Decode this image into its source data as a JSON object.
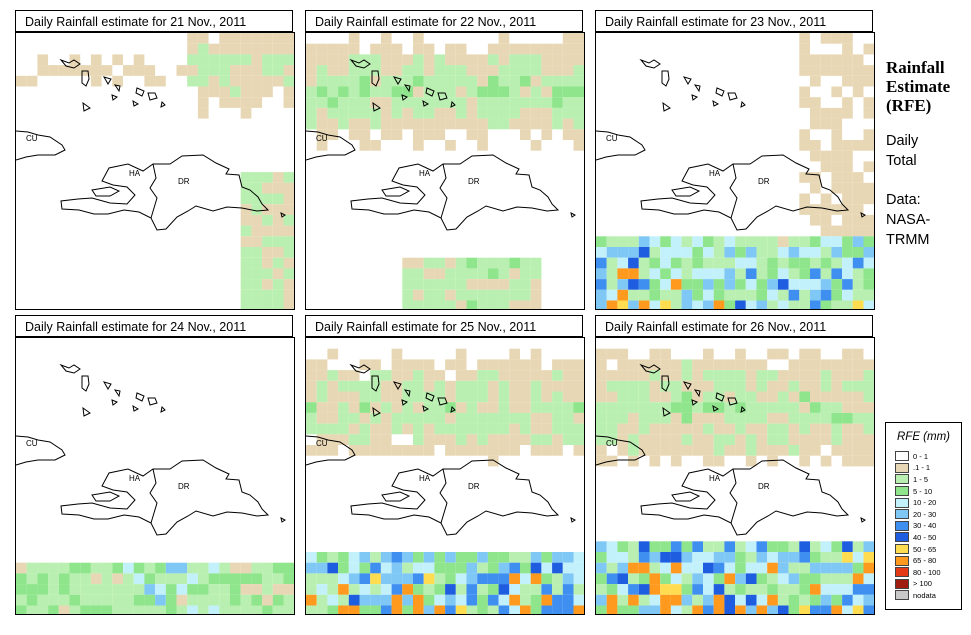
{
  "panels": [
    {
      "title": "Daily Rainfall estimate for  21 Nov., 2011"
    },
    {
      "title": "Daily Rainfall estimate for  22 Nov., 2011"
    },
    {
      "title": "Daily Rainfall estimate for  23 Nov., 2011"
    },
    {
      "title": "Daily Rainfall estimate for  24 Nov., 2011"
    },
    {
      "title": "Daily Rainfall estimate for  25 Nov., 2011"
    },
    {
      "title": "Daily Rainfall estimate for  26 Nov., 2011"
    }
  ],
  "map_labels": {
    "cuba": "CU",
    "haiti": "HA",
    "dominican_republic": "DR"
  },
  "side": {
    "title_line1": "Rainfall",
    "title_line2": "Estimate",
    "title_line3": "(RFE)",
    "period_line1": "Daily",
    "period_line2": "Total",
    "source_line1": "Data:",
    "source_line2": "NASA-",
    "source_line3": "TRMM"
  },
  "legend": {
    "title": "RFE (mm)",
    "items": [
      {
        "label": "0 - 1",
        "color": "#ffffff"
      },
      {
        "label": ".1 - 1",
        "color": "#e8d7b4"
      },
      {
        "label": "1 - 5",
        "color": "#b9efb0"
      },
      {
        "label": "5 - 10",
        "color": "#8fe58c"
      },
      {
        "label": "10 - 20",
        "color": "#c2f0fb"
      },
      {
        "label": "20 - 30",
        "color": "#7fc8f5"
      },
      {
        "label": "30 - 40",
        "color": "#3f8ff0"
      },
      {
        "label": "40 - 50",
        "color": "#1e5ce0"
      },
      {
        "label": "50 - 65",
        "color": "#ffdc50"
      },
      {
        "label": "65 - 80",
        "color": "#ff9a1f"
      },
      {
        "label": "80 - 100",
        "color": "#e53a16"
      },
      {
        "label": "> 100",
        "color": "#a01c10"
      },
      {
        "label": "nodata",
        "color": "#c8c8c8"
      }
    ]
  }
}
